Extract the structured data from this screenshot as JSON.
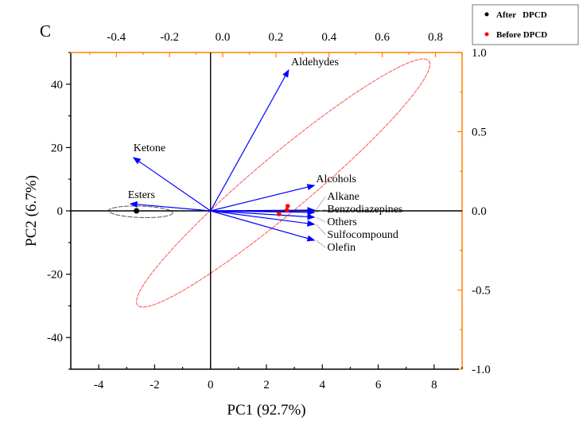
{
  "chart_data": {
    "type": "scatter",
    "subtype": "pca-biplot",
    "panel_label": "C",
    "xlabel": "PC1 (92.7%)",
    "ylabel": "PC2 (6.7%)",
    "xlim": [
      -5,
      9
    ],
    "ylim": [
      -50,
      50
    ],
    "xticks": [
      -4,
      -2,
      0,
      2,
      4,
      6,
      8
    ],
    "yticks": [
      -40,
      -20,
      0,
      20,
      40
    ],
    "top_axis": {
      "lim": [
        -0.5714,
        0.9
      ],
      "ticks": [
        -0.4,
        -0.2,
        0.0,
        0.2,
        0.4,
        0.6,
        0.8
      ],
      "tick_labels": [
        "-0.4",
        "-0.2",
        "0.0",
        "0.2",
        "0.4",
        "0.6",
        "0.8"
      ]
    },
    "right_axis": {
      "lim": [
        -1.0,
        1.0
      ],
      "ticks": [
        1.0,
        0.5,
        0.0,
        -0.5,
        -1.0
      ],
      "tick_labels": [
        "1.0",
        "0.5",
        "0.0",
        "-0.5",
        "-1.0"
      ]
    },
    "grid": false,
    "legend_position": "top-right",
    "colors": {
      "axes": "#000000",
      "secondary_axes": "#ff8000",
      "loadings": "#0000ff",
      "after": "#000000",
      "before": "#ff0000",
      "before_ellipse": "#ff5050",
      "after_ellipse": "#555555"
    },
    "series": [
      {
        "name": "After   DPCD",
        "color": "#000000",
        "points": [
          {
            "x": -2.65,
            "y": 0.0
          }
        ],
        "ellipse": {
          "cx": -2.5,
          "cy": -0.3,
          "rx": 1.15,
          "ry": 1.8,
          "angle_deg": -2
        }
      },
      {
        "name": "Before DPCD",
        "color": "#ff0000",
        "points": [
          {
            "x": 2.76,
            "y": 1.5
          },
          {
            "x": 2.73,
            "y": 0.25
          },
          {
            "x": 2.45,
            "y": -1.0
          }
        ],
        "ellipse": {
          "cx": 2.6,
          "cy": 8.8,
          "major": 6.8,
          "minor": 1.0,
          "angle_deg": 40
        }
      }
    ],
    "loadings": [
      {
        "name": "Aldehydes",
        "x": 0.248,
        "y": 0.89
      },
      {
        "name": "Ketone",
        "x": -0.336,
        "y": 0.337
      },
      {
        "name": "Esters",
        "x": -0.348,
        "y": 0.045
      },
      {
        "name": "Alcohols",
        "x": 0.345,
        "y": 0.161
      },
      {
        "name": "Alkane",
        "x": 0.345,
        "y": 0.005
      },
      {
        "name": "Benzodiazepines",
        "x": 0.345,
        "y": -0.01
      },
      {
        "name": "Others",
        "x": 0.345,
        "y": -0.04
      },
      {
        "name": "Sulfocompound",
        "x": 0.345,
        "y": -0.085
      },
      {
        "name": "Olefin",
        "x": 0.345,
        "y": -0.186
      }
    ]
  }
}
